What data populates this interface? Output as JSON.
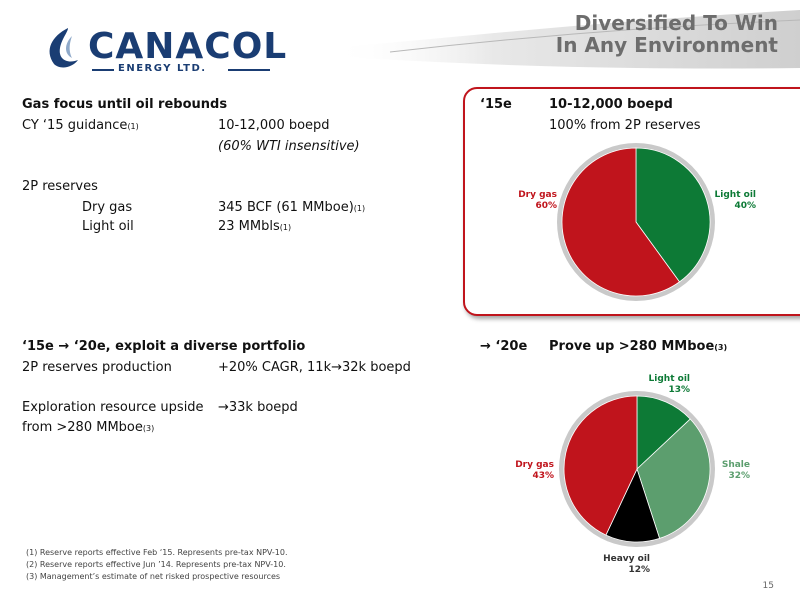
{
  "header": {
    "logo_word": "CANACOL",
    "logo_sub": "ENERGY LTD.",
    "title_line1": "Diversified To Win",
    "title_line2": "In Any Environment"
  },
  "left_top": {
    "heading": "Gas focus until oil rebounds",
    "guidance_label": "CY ‘15 guidance",
    "guidance_fn": "(1)",
    "guidance_value": "10-12,000 boepd",
    "guidance_note": "(60% WTI insensitive)",
    "reserves_label": "2P reserves",
    "dry_gas_label": "Dry gas",
    "dry_gas_value": "345 BCF (61 MMboe)",
    "dry_gas_fn": "(1)",
    "light_oil_label": "Light oil",
    "light_oil_value": "23 MMbls",
    "light_oil_fn": "(1)"
  },
  "left_bottom": {
    "heading": "‘15e → ‘20e, exploit a diverse portfolio",
    "prod_label": "2P reserves production",
    "prod_value": "+20% CAGR, 11k→32k boepd",
    "expl_label_1": "Exploration resource upside",
    "expl_label_2": "from >280 MMboe",
    "expl_fn": "(3)",
    "expl_value": "→33k boepd"
  },
  "right_top": {
    "period": "‘15e",
    "value": "10-12,000 boepd",
    "sub": "100% from 2P reserves"
  },
  "right_bottom": {
    "period": "→ ‘20e",
    "value": "Prove up >280 MMboe",
    "fn": "(3)"
  },
  "footnotes": [
    "(1)  Reserve reports effective Feb ‘15. Represents pre-tax NPV-10.",
    "(2)  Reserve reports effective Jun ’14. Represents pre-tax NPV-10.",
    "(3)  Management’s estimate of net risked prospective resources"
  ],
  "page_number": "15",
  "colors": {
    "brand_blue": "#1a3d73",
    "red": "#c0141c",
    "green": "#0d7a36",
    "shale": "#5c9e6e",
    "heavy": "#000000",
    "title_gray": "#6d6d6d"
  },
  "chart_data": [
    {
      "type": "pie",
      "title": "",
      "slices": [
        {
          "name": "Light oil",
          "value": 40,
          "label": "40%",
          "color": "#0d7a36"
        },
        {
          "name": "Dry gas",
          "value": 60,
          "label": "60%",
          "color": "#c0141c"
        }
      ]
    },
    {
      "type": "pie",
      "title": "",
      "slices": [
        {
          "name": "Light oil",
          "value": 13,
          "label": "13%",
          "color": "#0d7a36"
        },
        {
          "name": "Shale",
          "value": 32,
          "label": "32%",
          "color": "#5c9e6e"
        },
        {
          "name": "Heavy oil",
          "value": 12,
          "label": "12%",
          "color": "#000000"
        },
        {
          "name": "Dry gas",
          "value": 43,
          "label": "43%",
          "color": "#c0141c"
        }
      ]
    }
  ]
}
